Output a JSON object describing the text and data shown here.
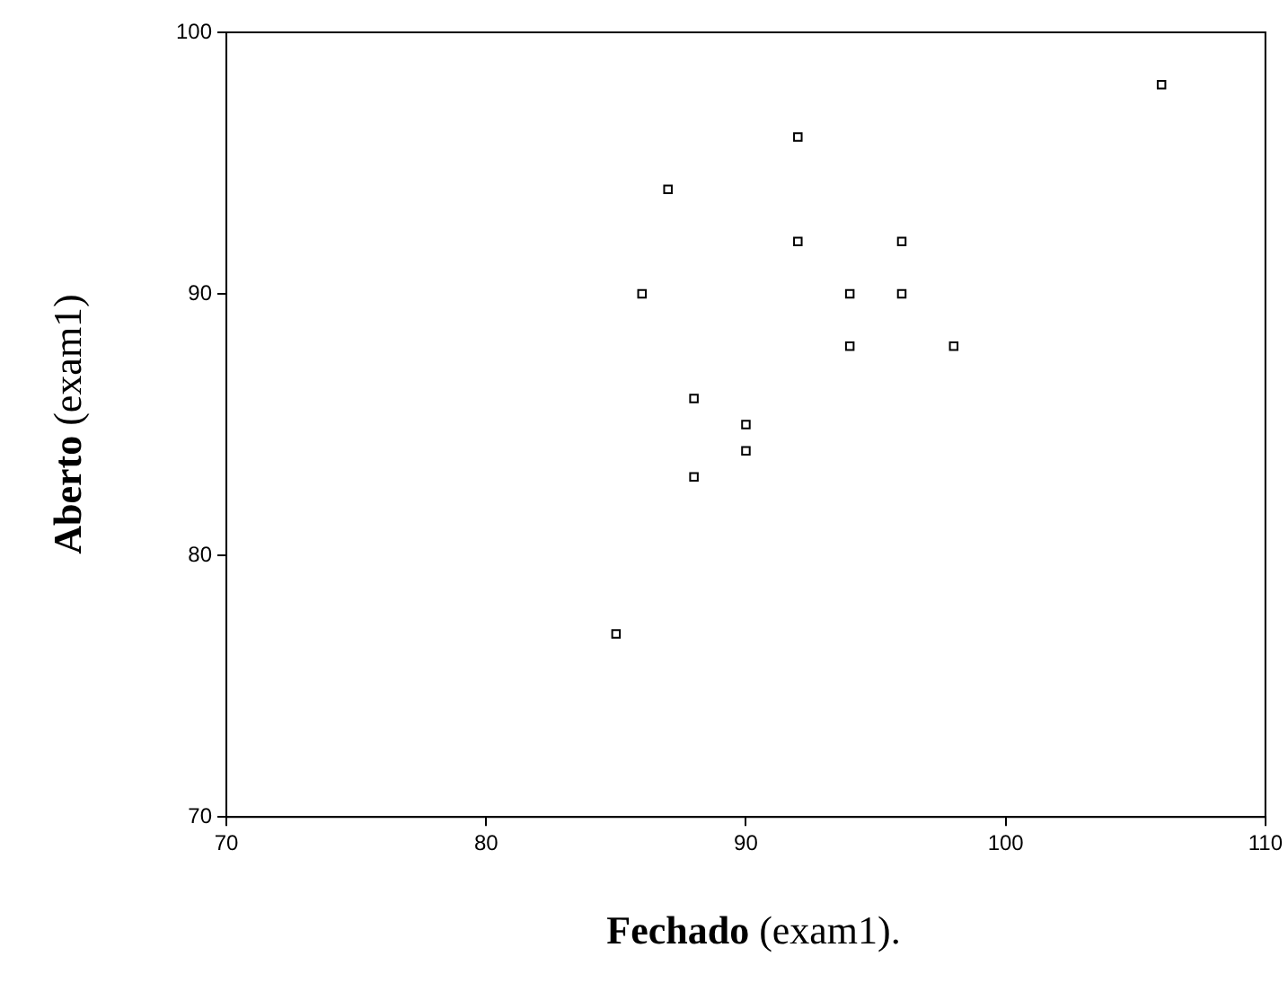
{
  "chart_data": {
    "type": "scatter",
    "xlabel": "Fechado (exam1).",
    "ylabel": "Aberto (exam1)",
    "x": [
      85,
      86,
      87,
      88,
      88,
      90,
      90,
      92,
      92,
      94,
      94,
      96,
      96,
      98,
      106
    ],
    "values": [
      77,
      90,
      94,
      86,
      83,
      85,
      84,
      96,
      92,
      90,
      88,
      92,
      90,
      88,
      98
    ],
    "color": "#000000",
    "marker": "square",
    "grid": false,
    "xlim": [
      70,
      110
    ],
    "xticks": [
      70,
      80,
      90,
      100,
      110
    ],
    "ylim": [
      70,
      100
    ],
    "yticks": [
      70,
      80,
      90,
      100
    ]
  }
}
